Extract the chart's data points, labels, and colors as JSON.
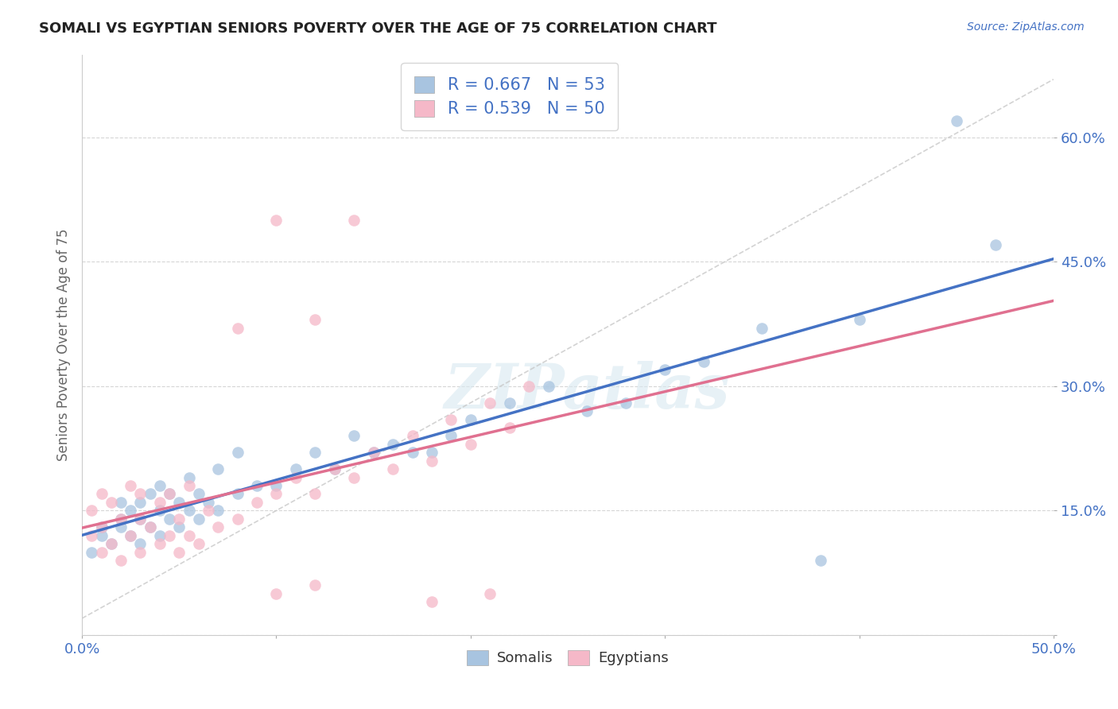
{
  "title": "SOMALI VS EGYPTIAN SENIORS POVERTY OVER THE AGE OF 75 CORRELATION CHART",
  "source": "Source: ZipAtlas.com",
  "ylabel": "Seniors Poverty Over the Age of 75",
  "xlim": [
    0.0,
    0.5
  ],
  "ylim": [
    0.0,
    0.7
  ],
  "xticks": [
    0.0,
    0.1,
    0.2,
    0.3,
    0.4,
    0.5
  ],
  "xtick_labels": [
    "0.0%",
    "",
    "",
    "",
    "",
    "50.0%"
  ],
  "yticks": [
    0.0,
    0.15,
    0.3,
    0.45,
    0.6
  ],
  "ytick_labels": [
    "",
    "15.0%",
    "30.0%",
    "45.0%",
    "60.0%"
  ],
  "somali_color": "#a8c4e0",
  "somali_line_color": "#4472c4",
  "egyptian_color": "#f5b8c8",
  "egyptian_line_color": "#e07090",
  "diag_color": "#cccccc",
  "somali_R": 0.667,
  "somali_N": 53,
  "egyptian_R": 0.539,
  "egyptian_N": 50,
  "legend_label_somali": "Somalis",
  "legend_label_egyptian": "Egyptians",
  "watermark": "ZIPatlas",
  "somali_x": [
    0.005,
    0.01,
    0.01,
    0.015,
    0.02,
    0.02,
    0.02,
    0.025,
    0.025,
    0.03,
    0.03,
    0.03,
    0.035,
    0.035,
    0.04,
    0.04,
    0.04,
    0.045,
    0.045,
    0.05,
    0.05,
    0.055,
    0.055,
    0.06,
    0.06,
    0.065,
    0.07,
    0.07,
    0.08,
    0.08,
    0.09,
    0.1,
    0.11,
    0.12,
    0.13,
    0.14,
    0.15,
    0.16,
    0.17,
    0.18,
    0.19,
    0.2,
    0.22,
    0.24,
    0.26,
    0.28,
    0.3,
    0.32,
    0.35,
    0.38,
    0.4,
    0.45,
    0.47
  ],
  "somali_y": [
    0.1,
    0.12,
    0.13,
    0.11,
    0.13,
    0.14,
    0.16,
    0.12,
    0.15,
    0.11,
    0.14,
    0.16,
    0.13,
    0.17,
    0.12,
    0.15,
    0.18,
    0.14,
    0.17,
    0.13,
    0.16,
    0.15,
    0.19,
    0.14,
    0.17,
    0.16,
    0.15,
    0.2,
    0.17,
    0.22,
    0.18,
    0.18,
    0.2,
    0.22,
    0.2,
    0.24,
    0.22,
    0.23,
    0.22,
    0.22,
    0.24,
    0.26,
    0.28,
    0.3,
    0.27,
    0.28,
    0.32,
    0.33,
    0.37,
    0.09,
    0.38,
    0.62,
    0.47
  ],
  "egyptian_x": [
    0.005,
    0.005,
    0.01,
    0.01,
    0.01,
    0.015,
    0.015,
    0.02,
    0.02,
    0.025,
    0.025,
    0.03,
    0.03,
    0.03,
    0.035,
    0.04,
    0.04,
    0.045,
    0.045,
    0.05,
    0.05,
    0.055,
    0.055,
    0.06,
    0.065,
    0.07,
    0.08,
    0.09,
    0.1,
    0.11,
    0.12,
    0.13,
    0.14,
    0.15,
    0.16,
    0.17,
    0.18,
    0.19,
    0.2,
    0.21,
    0.22,
    0.23,
    0.08,
    0.1,
    0.12,
    0.14,
    0.1,
    0.12,
    0.18,
    0.21
  ],
  "egyptian_y": [
    0.12,
    0.15,
    0.1,
    0.13,
    0.17,
    0.11,
    0.16,
    0.09,
    0.14,
    0.12,
    0.18,
    0.1,
    0.14,
    0.17,
    0.13,
    0.11,
    0.16,
    0.12,
    0.17,
    0.1,
    0.14,
    0.12,
    0.18,
    0.11,
    0.15,
    0.13,
    0.14,
    0.16,
    0.17,
    0.19,
    0.17,
    0.2,
    0.19,
    0.22,
    0.2,
    0.24,
    0.21,
    0.26,
    0.23,
    0.28,
    0.25,
    0.3,
    0.37,
    0.5,
    0.38,
    0.5,
    0.05,
    0.06,
    0.04,
    0.05
  ]
}
